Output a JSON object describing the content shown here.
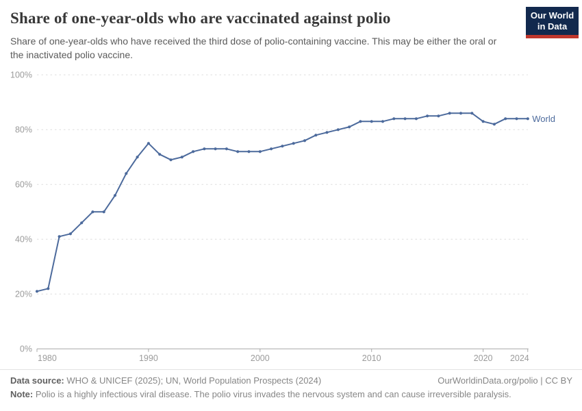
{
  "header": {
    "title": "Share of one-year-olds who are vaccinated against polio",
    "subtitle": "Share of one-year-olds who have received the third dose of polio-containing vaccine. This may be either the oral or the inactivated polio vaccine.",
    "logo": {
      "line1": "Our World",
      "line2": "in Data"
    }
  },
  "chart_data": {
    "type": "line",
    "title": "Share of one-year-olds who are vaccinated against polio",
    "x": [
      1980,
      1981,
      1982,
      1983,
      1984,
      1985,
      1986,
      1987,
      1988,
      1989,
      1990,
      1991,
      1992,
      1993,
      1994,
      1995,
      1996,
      1997,
      1998,
      1999,
      2000,
      2001,
      2002,
      2003,
      2004,
      2005,
      2006,
      2007,
      2008,
      2009,
      2010,
      2011,
      2012,
      2013,
      2014,
      2015,
      2016,
      2017,
      2018,
      2019,
      2020,
      2021,
      2022,
      2023,
      2024
    ],
    "series": [
      {
        "name": "World",
        "values": [
          21,
          22,
          41,
          42,
          46,
          50,
          50,
          56,
          64,
          70,
          75,
          71,
          69,
          70,
          72,
          73,
          73,
          73,
          72,
          72,
          72,
          73,
          74,
          75,
          76,
          78,
          79,
          80,
          81,
          83,
          83,
          83,
          84,
          84,
          84,
          85,
          85,
          86,
          86,
          86,
          83,
          82,
          84,
          84,
          84
        ]
      }
    ],
    "end_label": "World",
    "xticks": [
      1980,
      1990,
      2000,
      2010,
      2020,
      2024
    ],
    "yticks": [
      0,
      20,
      40,
      60,
      80,
      100
    ],
    "ylim": [
      0,
      100
    ],
    "xlim": [
      1980,
      2024
    ],
    "y_unit": "%",
    "xlabel": "",
    "ylabel": "",
    "grid": "horizontal-dashed",
    "legend_position": "end-of-line-label"
  },
  "colors": {
    "line": "#4C6A9C",
    "grid": "#dddddd",
    "axis": "#a8a8a8",
    "tick_label": "#9b9b9b",
    "logo_bg": "#12294e",
    "logo_red": "#c0372d"
  },
  "footer": {
    "datasource_label": "Data source:",
    "datasource_text": "WHO & UNICEF (2025); UN, World Population Prospects (2024)",
    "link_text": "OurWorldinData.org/polio | CC BY",
    "note_label": "Note:",
    "note_text": "Polio is a highly infectious viral disease. The polio virus invades the nervous system and can cause irreversible paralysis."
  }
}
